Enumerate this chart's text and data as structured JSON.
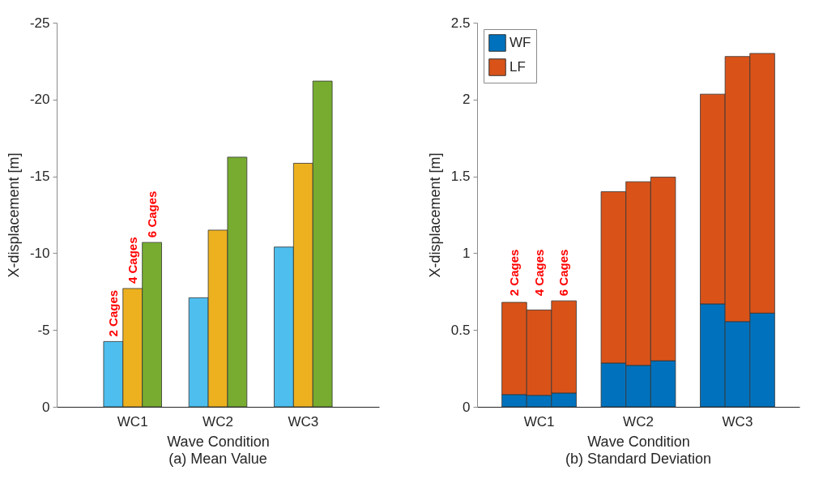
{
  "chart_data": [
    {
      "type": "bar",
      "title": "(a) Mean Value",
      "xlabel": "Wave Condition",
      "ylabel": "X-displacement [m]",
      "categories": [
        "WC1",
        "WC2",
        "WC3"
      ],
      "ylim": [
        0,
        -25
      ],
      "yticks": [
        0,
        -5,
        -10,
        -15,
        -20,
        -25
      ],
      "series": [
        {
          "name": "2 Cages",
          "color": "#4dbeee",
          "values": [
            -4.25,
            -7.1,
            -10.4
          ]
        },
        {
          "name": "4 Cages",
          "color": "#edb120",
          "values": [
            -7.7,
            -11.5,
            -15.85
          ]
        },
        {
          "name": "6 Cages",
          "color": "#77ac30",
          "values": [
            -10.7,
            -16.25,
            -21.2
          ]
        }
      ]
    },
    {
      "type": "bar",
      "title": "(b) Standard Deviation",
      "xlabel": "Wave Condition",
      "ylabel": "X-displacement [m]",
      "stacked": true,
      "legend": "top left",
      "categories": [
        null,
        "WC1",
        null,
        null,
        null,
        "WC2",
        null,
        null,
        null,
        "WC3",
        null
      ],
      "ylim": [
        0,
        2.5
      ],
      "yticks": [
        0,
        0.5,
        1,
        1.5,
        2,
        2.5
      ],
      "series": [
        {
          "name": "WF",
          "color": "#0072bd",
          "values": [
            0.08,
            0.075,
            0.09,
            null,
            0.285,
            0.27,
            0.3,
            null,
            0.67,
            0.555,
            0.61
          ]
        },
        {
          "name": "LF",
          "color": "#d95319",
          "values": [
            0.6,
            0.555,
            0.6,
            null,
            1.115,
            1.195,
            1.195,
            null,
            1.365,
            1.725,
            1.69
          ]
        }
      ],
      "annotations": [
        "2 Cages",
        "4 Cages",
        "6 Cages"
      ]
    }
  ]
}
